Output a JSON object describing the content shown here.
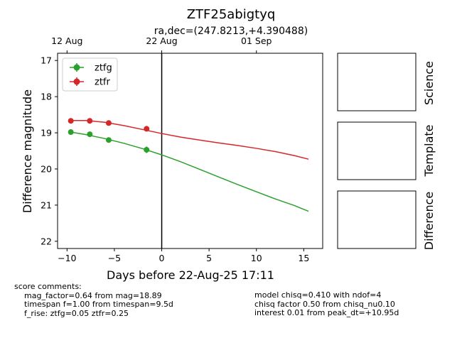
{
  "chart_data": {
    "type": "scatter",
    "title": "ZTF25abigtyq",
    "subtitle": "ra,dec=(247.8213,+4.390488)",
    "xlabel": "Days before 22-Aug-25 17:11",
    "ylabel": "Difference magnitude",
    "xlim": [
      -11,
      17
    ],
    "ylim": [
      22.2,
      16.8
    ],
    "x_ticks": [
      -10,
      -5,
      0,
      5,
      10,
      15
    ],
    "x_tick_labels": [
      "−10",
      "−5",
      "0",
      "5",
      "10",
      "15"
    ],
    "y_ticks": [
      17,
      18,
      19,
      20,
      21,
      22
    ],
    "y_tick_labels": [
      "17",
      "18",
      "19",
      "20",
      "21",
      "22"
    ],
    "top_axis": {
      "ticks": [
        -10,
        0,
        10
      ],
      "labels": [
        "12 Aug",
        "22 Aug",
        "01 Sep"
      ]
    },
    "vline_x": 0,
    "legend_position": "upper-left",
    "series": [
      {
        "name": "ztfg",
        "color": "#2ca02c",
        "points": [
          {
            "x": -9.6,
            "y": 18.98,
            "err": 0.05
          },
          {
            "x": -7.6,
            "y": 19.04,
            "err": 0.07
          },
          {
            "x": -5.6,
            "y": 19.2,
            "err": 0.07
          },
          {
            "x": -1.6,
            "y": 19.47,
            "err": 0.09
          }
        ],
        "model": [
          {
            "x": -9.6,
            "y": 18.98
          },
          {
            "x": -8,
            "y": 19.05
          },
          {
            "x": -6,
            "y": 19.16
          },
          {
            "x": -4,
            "y": 19.29
          },
          {
            "x": -2,
            "y": 19.44
          },
          {
            "x": 0,
            "y": 19.61
          },
          {
            "x": 2,
            "y": 19.8
          },
          {
            "x": 4,
            "y": 20.01
          },
          {
            "x": 6,
            "y": 20.22
          },
          {
            "x": 8,
            "y": 20.43
          },
          {
            "x": 10,
            "y": 20.63
          },
          {
            "x": 12,
            "y": 20.83
          },
          {
            "x": 14,
            "y": 21.01
          },
          {
            "x": 15.5,
            "y": 21.17
          }
        ]
      },
      {
        "name": "ztfr",
        "color": "#d62728",
        "points": [
          {
            "x": -9.6,
            "y": 18.67,
            "err": 0.05
          },
          {
            "x": -7.6,
            "y": 18.67,
            "err": 0.04
          },
          {
            "x": -5.6,
            "y": 18.73,
            "err": 0.05
          },
          {
            "x": -1.6,
            "y": 18.89,
            "err": 0.06
          }
        ],
        "model": [
          {
            "x": -9.6,
            "y": 18.66
          },
          {
            "x": -8,
            "y": 18.66
          },
          {
            "x": -6,
            "y": 18.71
          },
          {
            "x": -4,
            "y": 18.8
          },
          {
            "x": -2,
            "y": 18.91
          },
          {
            "x": 0,
            "y": 19.02
          },
          {
            "x": 2,
            "y": 19.12
          },
          {
            "x": 4,
            "y": 19.2
          },
          {
            "x": 6,
            "y": 19.28
          },
          {
            "x": 8,
            "y": 19.35
          },
          {
            "x": 10,
            "y": 19.43
          },
          {
            "x": 12,
            "y": 19.52
          },
          {
            "x": 14,
            "y": 19.63
          },
          {
            "x": 15.5,
            "y": 19.73
          }
        ]
      }
    ]
  },
  "panels": [
    {
      "label": "Science"
    },
    {
      "label": "Template"
    },
    {
      "label": "Difference"
    }
  ],
  "comments": {
    "heading": "score comments:",
    "left": [
      "mag_factor=0.64 from mag=18.89",
      "timespan f=1.00 from timespan=9.5d",
      "f_rise: ztfg=0.05 ztfr=0.25"
    ],
    "right": [
      "model chisq=0.410 with ndof=4",
      "chisq factor 0.50 from chisq_nu0.10",
      "interest 0.01 from peak_dt=+10.95d"
    ]
  }
}
